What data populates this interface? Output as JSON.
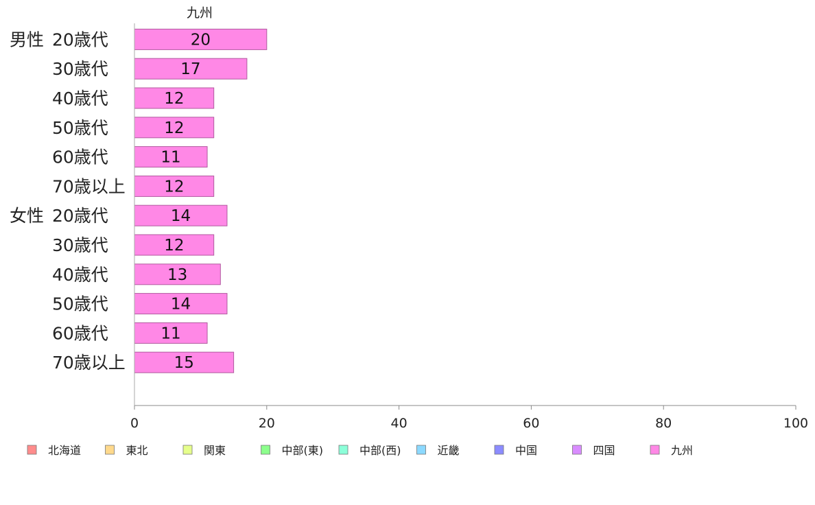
{
  "chart_data": {
    "type": "bar",
    "orientation": "horizontal",
    "series_title": "九州",
    "group_labels": [
      "男性",
      "女性"
    ],
    "categories": [
      "20歳代",
      "30歳代",
      "40歳代",
      "50歳代",
      "60歳代",
      "70歳以上",
      "20歳代",
      "30歳代",
      "40歳代",
      "50歳代",
      "60歳代",
      "70歳以上"
    ],
    "category_groups": [
      0,
      0,
      0,
      0,
      0,
      0,
      1,
      1,
      1,
      1,
      1,
      1
    ],
    "series": [
      {
        "name": "九州",
        "color": "#ff88e6",
        "values": [
          20,
          17,
          12,
          12,
          11,
          12,
          14,
          12,
          13,
          14,
          11,
          15
        ]
      }
    ],
    "xlim": [
      0,
      100
    ],
    "xticks": [
      0,
      20,
      40,
      60,
      80,
      100
    ],
    "legend": {
      "placement": "bottom",
      "items": [
        {
          "label": "北海道",
          "color": "#ff8c8c"
        },
        {
          "label": "東北",
          "color": "#ffd98c"
        },
        {
          "label": "関東",
          "color": "#e6ff8c"
        },
        {
          "label": "中部(東)",
          "color": "#8cff8c"
        },
        {
          "label": "中部(西)",
          "color": "#8cffd9"
        },
        {
          "label": "近畿",
          "color": "#8cd9ff"
        },
        {
          "label": "中国",
          "color": "#8c8cff"
        },
        {
          "label": "四国",
          "color": "#d98cff"
        },
        {
          "label": "九州",
          "color": "#ff88e6"
        }
      ]
    },
    "grid": false
  }
}
